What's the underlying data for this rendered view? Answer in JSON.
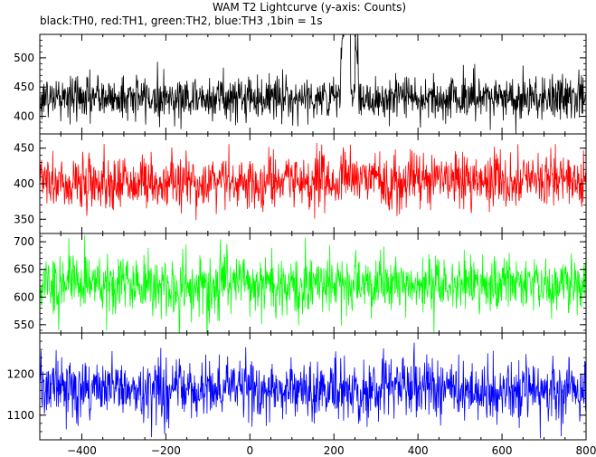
{
  "chart_data": {
    "type": "line",
    "title": "WAM T2 Lightcurve (y-axis: Counts)",
    "subtitle": "black:TH0, red:TH1, green:TH2, blue:TH3 ,1bin = 1s",
    "xlabel": "",
    "ylabel": "",
    "xlim": [
      -500,
      800
    ],
    "x_ticks": [
      -400,
      -200,
      0,
      200,
      400,
      600,
      800
    ],
    "x_tick_labels": [
      "−400",
      "−200",
      "0",
      "200",
      "400",
      "600",
      "800"
    ],
    "bin_seconds": 1,
    "grid": false,
    "panels": [
      {
        "id": "TH0",
        "color": "#000000",
        "ylim": [
          370,
          540
        ],
        "y_ticks": [
          400,
          450,
          500
        ],
        "y_tick_labels": [
          "400",
          "450",
          "500"
        ],
        "baseline": 432,
        "noise_sd": 19,
        "features": [
          {
            "type": "burst",
            "x_start": 215,
            "x_end": 260,
            "peak": 600
          },
          {
            "type": "dip",
            "x_start": 240,
            "x_end": 250,
            "level": 440
          }
        ]
      },
      {
        "id": "TH1",
        "color": "#ff0000",
        "ylim": [
          330,
          470
        ],
        "y_ticks": [
          350,
          400,
          450
        ],
        "y_tick_labels": [
          "350",
          "400",
          "450"
        ],
        "baseline": 402,
        "noise_sd": 19,
        "features": [
          {
            "type": "step",
            "x_start": 215,
            "x_end": 800,
            "delta": 4
          }
        ]
      },
      {
        "id": "TH2",
        "color": "#00ff00",
        "ylim": [
          535,
          715
        ],
        "y_ticks": [
          550,
          600,
          650,
          700
        ],
        "y_tick_labels": [
          "550",
          "600",
          "650",
          "700"
        ],
        "baseline": 622,
        "noise_sd": 27,
        "features": []
      },
      {
        "id": "TH3",
        "color": "#0000ff",
        "ylim": [
          1040,
          1300
        ],
        "y_ticks": [
          1100,
          1200
        ],
        "y_tick_labels": [
          "1100",
          "1200"
        ],
        "baseline": 1163,
        "noise_sd": 36,
        "features": []
      }
    ]
  }
}
